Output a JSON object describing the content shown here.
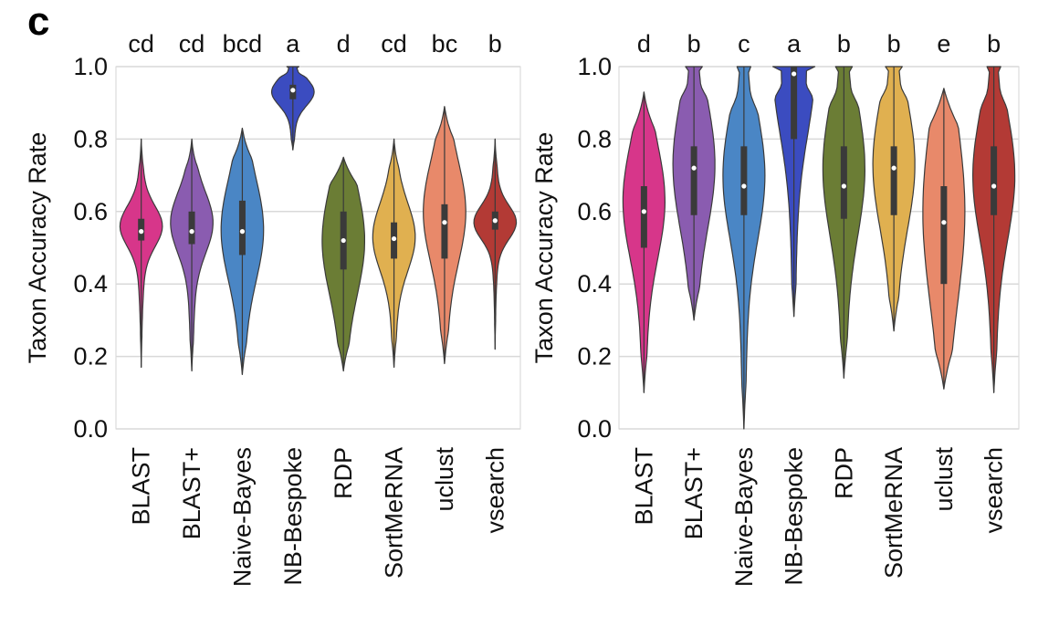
{
  "panel_label": "c",
  "chart_data": [
    {
      "type": "violin",
      "ylabel": "Taxon Accuracy Rate",
      "ylim": [
        0.0,
        1.0
      ],
      "yticks": [
        "0.0",
        "0.2",
        "0.4",
        "0.6",
        "0.8",
        "1.0"
      ],
      "grid": "horizontal",
      "categories": [
        "BLAST",
        "BLAST+",
        "Naive-Bayes",
        "NB-Bespoke",
        "RDP",
        "SortMeRNA",
        "uclust",
        "vsearch"
      ],
      "significance_letters": [
        "cd",
        "cd",
        "bcd",
        "a",
        "d",
        "cd",
        "bc",
        "b"
      ],
      "series": [
        {
          "category": "BLAST",
          "color": "#d7368a",
          "min": 0.17,
          "max": 0.8,
          "q1": 0.52,
          "median": 0.545,
          "q3": 0.58,
          "mode": 0.56
        },
        {
          "category": "BLAST+",
          "color": "#8a5cb0",
          "min": 0.16,
          "max": 0.8,
          "q1": 0.51,
          "median": 0.545,
          "q3": 0.6,
          "mode": 0.57
        },
        {
          "category": "Naive-Bayes",
          "color": "#4a86c5",
          "min": 0.15,
          "max": 0.83,
          "q1": 0.48,
          "median": 0.545,
          "q3": 0.63,
          "mode": 0.55
        },
        {
          "category": "NB-Bespoke",
          "color": "#3b4cc0",
          "min": 0.77,
          "max": 1.0,
          "q1": 0.91,
          "median": 0.935,
          "q3": 0.95,
          "mode": 0.93
        },
        {
          "category": "RDP",
          "color": "#6b7d35",
          "min": 0.16,
          "max": 0.75,
          "q1": 0.44,
          "median": 0.52,
          "q3": 0.6,
          "mode": 0.52
        },
        {
          "category": "SortMeRNA",
          "color": "#e0b050",
          "min": 0.17,
          "max": 0.8,
          "q1": 0.47,
          "median": 0.525,
          "q3": 0.57,
          "mode": 0.53
        },
        {
          "category": "uclust",
          "color": "#e8896a",
          "min": 0.18,
          "max": 0.89,
          "q1": 0.47,
          "median": 0.57,
          "q3": 0.62,
          "mode": 0.6
        },
        {
          "category": "vsearch",
          "color": "#b33a35",
          "min": 0.22,
          "max": 0.8,
          "q1": 0.55,
          "median": 0.575,
          "q3": 0.6,
          "mode": 0.57
        }
      ]
    },
    {
      "type": "violin",
      "ylabel": "Taxon Accuracy Rate",
      "ylim": [
        0.0,
        1.0
      ],
      "yticks": [
        "0.0",
        "0.2",
        "0.4",
        "0.6",
        "0.8",
        "1.0"
      ],
      "grid": "horizontal",
      "categories": [
        "BLAST",
        "BLAST+",
        "Naive-Bayes",
        "NB-Bespoke",
        "RDP",
        "SortMeRNA",
        "uclust",
        "vsearch"
      ],
      "significance_letters": [
        "d",
        "b",
        "c",
        "a",
        "b",
        "b",
        "e",
        "b"
      ],
      "series": [
        {
          "category": "BLAST",
          "color": "#d7368a",
          "min": 0.1,
          "max": 0.93,
          "q1": 0.5,
          "median": 0.6,
          "q3": 0.67,
          "mode": 0.63
        },
        {
          "category": "BLAST+",
          "color": "#8a5cb0",
          "min": 0.3,
          "max": 1.0,
          "q1": 0.59,
          "median": 0.72,
          "q3": 0.78,
          "mode": 0.73
        },
        {
          "category": "Naive-Bayes",
          "color": "#4a86c5",
          "min": 0.0,
          "max": 1.0,
          "q1": 0.59,
          "median": 0.67,
          "q3": 0.78,
          "mode": 0.7
        },
        {
          "category": "NB-Bespoke",
          "color": "#3b4cc0",
          "min": 0.31,
          "max": 1.0,
          "q1": 0.8,
          "median": 0.98,
          "q3": 1.0,
          "mode": 1.0
        },
        {
          "category": "RDP",
          "color": "#6b7d35",
          "min": 0.14,
          "max": 1.0,
          "q1": 0.58,
          "median": 0.67,
          "q3": 0.78,
          "mode": 0.72
        },
        {
          "category": "SortMeRNA",
          "color": "#e0b050",
          "min": 0.27,
          "max": 1.0,
          "q1": 0.59,
          "median": 0.72,
          "q3": 0.78,
          "mode": 0.73
        },
        {
          "category": "uclust",
          "color": "#e8896a",
          "min": 0.11,
          "max": 0.94,
          "q1": 0.4,
          "median": 0.57,
          "q3": 0.67,
          "mode": 0.6
        },
        {
          "category": "vsearch",
          "color": "#b33a35",
          "min": 0.1,
          "max": 1.0,
          "q1": 0.59,
          "median": 0.67,
          "q3": 0.78,
          "mode": 0.7
        }
      ]
    }
  ]
}
